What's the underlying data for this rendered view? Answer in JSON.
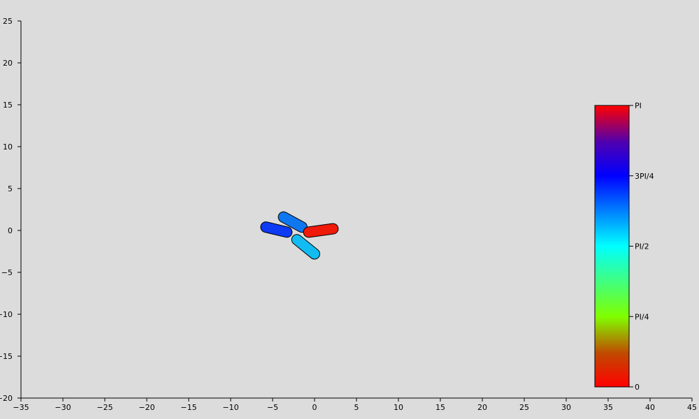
{
  "chart_data": {
    "type": "scatter",
    "title": "",
    "xlabel": "",
    "ylabel": "",
    "xlim": [
      -35,
      45
    ],
    "ylim": [
      -20,
      25
    ],
    "xticks": [
      -35,
      -30,
      -25,
      -20,
      -15,
      -10,
      -5,
      0,
      5,
      10,
      15,
      20,
      25,
      30,
      35,
      40,
      45
    ],
    "yticks": [
      -20,
      -15,
      -10,
      -5,
      0,
      5,
      10,
      15,
      20,
      25
    ],
    "grid": false,
    "segments": [
      {
        "start": [
          -5.8,
          0.4
        ],
        "end": [
          -3.3,
          -0.2
        ],
        "color": "#0d3af2"
      },
      {
        "start": [
          -3.7,
          1.6
        ],
        "end": [
          -1.5,
          0.4
        ],
        "color": "#0f78f0"
      },
      {
        "start": [
          -0.7,
          -0.2
        ],
        "end": [
          2.2,
          0.2
        ],
        "color": "#f01a0a"
      },
      {
        "start": [
          -2.1,
          -1.1
        ],
        "end": [
          0.0,
          -2.8
        ],
        "color": "#12bcf2"
      }
    ],
    "colorbar": {
      "position": "right",
      "ticks": [
        "0",
        "PI/4",
        "PI/2",
        "3PI/4",
        "PI"
      ],
      "colors": [
        "#ff0000",
        "#80ff00",
        "#00ffff",
        "#0000ff",
        "#ff0000"
      ]
    }
  }
}
